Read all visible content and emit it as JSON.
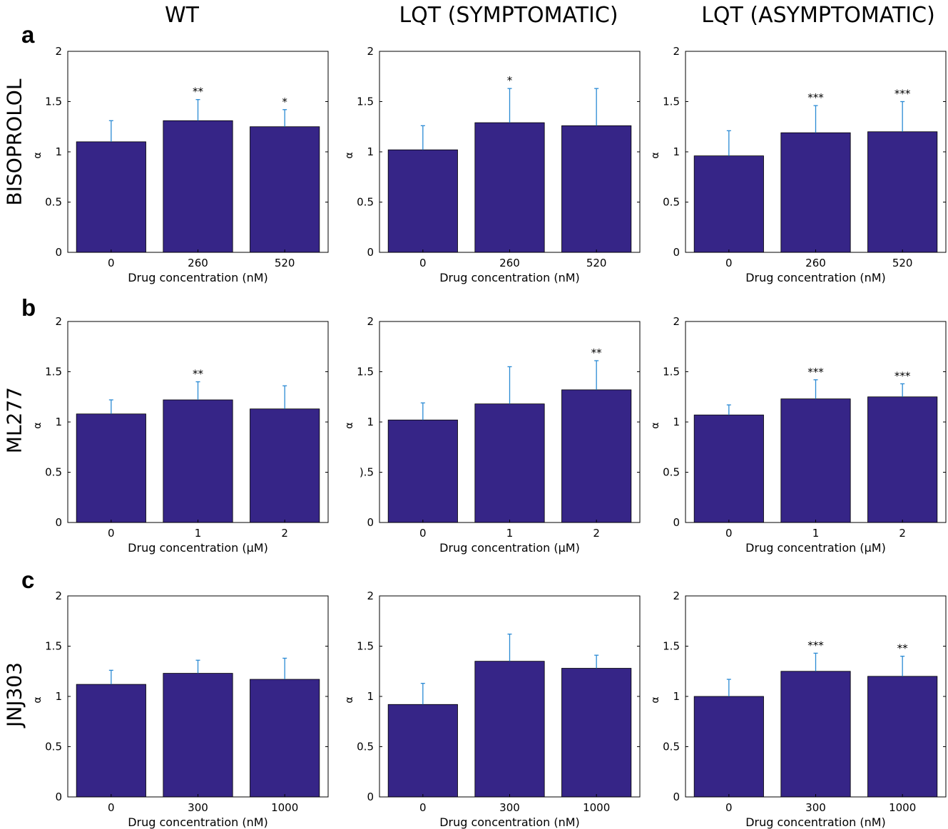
{
  "column_titles": [
    "WT",
    "LQT (SYMPTOMATIC)",
    "LQT (ASYMPTOMATIC)"
  ],
  "row_labels": [
    "a",
    "b",
    "c"
  ],
  "drug_names": [
    "BISOPROLOL",
    "ML277",
    "JNJ303"
  ],
  "colors": {
    "bar": "#362587",
    "error": "#2a8ad4"
  },
  "chart_data": [
    {
      "type": "bar",
      "row": 0,
      "col": 0,
      "categories": [
        "0",
        "260",
        "520"
      ],
      "values": [
        1.1,
        1.31,
        1.25
      ],
      "errors": [
        0.21,
        0.21,
        0.17
      ],
      "sig": [
        "",
        "**",
        "*"
      ],
      "xlabel": "Drug concentration (nM)",
      "ylabel": "α",
      "ylim": [
        0,
        2
      ],
      "yticks": [
        "0",
        "0.5",
        "1",
        "1.5",
        "2"
      ]
    },
    {
      "type": "bar",
      "row": 0,
      "col": 1,
      "categories": [
        "0",
        "260",
        "520"
      ],
      "values": [
        1.02,
        1.29,
        1.26
      ],
      "errors": [
        0.24,
        0.34,
        0.37
      ],
      "sig": [
        "",
        "*",
        ""
      ],
      "xlabel": "Drug concentration (nM)",
      "ylabel": "α",
      "ylim": [
        0,
        2
      ],
      "yticks": [
        "0",
        "0.5",
        "1",
        "1.5",
        "2"
      ]
    },
    {
      "type": "bar",
      "row": 0,
      "col": 2,
      "categories": [
        "0",
        "260",
        "520"
      ],
      "values": [
        0.96,
        1.19,
        1.2
      ],
      "errors": [
        0.25,
        0.27,
        0.3
      ],
      "sig": [
        "",
        "***",
        "***"
      ],
      "xlabel": "Drug concentration (nM)",
      "ylabel": "α",
      "ylim": [
        0,
        2
      ],
      "yticks": [
        "0",
        "0.5",
        "1",
        "1.5",
        "2"
      ]
    },
    {
      "type": "bar",
      "row": 1,
      "col": 0,
      "categories": [
        "0",
        "1",
        "2"
      ],
      "values": [
        1.08,
        1.22,
        1.13
      ],
      "errors": [
        0.14,
        0.18,
        0.23
      ],
      "sig": [
        "",
        "**",
        ""
      ],
      "xlabel": "Drug concentration (μM)",
      "ylabel": "α",
      "ylim": [
        0,
        2
      ],
      "yticks": [
        "0",
        "0.5",
        "1",
        "1.5",
        "2"
      ]
    },
    {
      "type": "bar",
      "row": 1,
      "col": 1,
      "categories": [
        "0",
        "1",
        "2"
      ],
      "values": [
        1.02,
        1.18,
        1.32
      ],
      "errors": [
        0.17,
        0.37,
        0.29
      ],
      "sig": [
        "",
        "",
        "**"
      ],
      "xlabel": "Drug concentration (μM)",
      "ylabel": "α",
      "ylim": [
        0,
        2
      ],
      "yticks": [
        "0",
        ").5",
        "1",
        "1.5",
        "2"
      ]
    },
    {
      "type": "bar",
      "row": 1,
      "col": 2,
      "categories": [
        "0",
        "1",
        "2"
      ],
      "values": [
        1.07,
        1.23,
        1.25
      ],
      "errors": [
        0.1,
        0.19,
        0.13
      ],
      "sig": [
        "",
        "***",
        "***"
      ],
      "xlabel": "Drug concentration (μM)",
      "ylabel": "α",
      "ylim": [
        0,
        2
      ],
      "yticks": [
        "0",
        "0.5",
        "1",
        "1.5",
        "2"
      ]
    },
    {
      "type": "bar",
      "row": 2,
      "col": 0,
      "categories": [
        "0",
        "300",
        "1000"
      ],
      "values": [
        1.12,
        1.23,
        1.17
      ],
      "errors": [
        0.14,
        0.13,
        0.21
      ],
      "sig": [
        "",
        "",
        ""
      ],
      "xlabel": "Drug concentration (nM)",
      "ylabel": "α",
      "ylim": [
        0,
        2
      ],
      "yticks": [
        "0",
        "0.5",
        "1",
        "1.5",
        "2"
      ]
    },
    {
      "type": "bar",
      "row": 2,
      "col": 1,
      "categories": [
        "0",
        "300",
        "1000"
      ],
      "values": [
        0.92,
        1.35,
        1.28
      ],
      "errors": [
        0.21,
        0.27,
        0.13
      ],
      "sig": [
        "",
        "",
        ""
      ],
      "xlabel": "Drug concentration (nM)",
      "ylabel": "α",
      "ylim": [
        0,
        2
      ],
      "yticks": [
        "0",
        "0.5",
        "1",
        "1.5",
        "2"
      ]
    },
    {
      "type": "bar",
      "row": 2,
      "col": 2,
      "categories": [
        "0",
        "300",
        "1000"
      ],
      "values": [
        1.0,
        1.25,
        1.2
      ],
      "errors": [
        0.17,
        0.18,
        0.2
      ],
      "sig": [
        "",
        "***",
        "**"
      ],
      "xlabel": "Drug concentration (nM)",
      "ylabel": "α",
      "ylim": [
        0,
        2
      ],
      "yticks": [
        "0",
        "0.5",
        "1",
        "1.5",
        "2"
      ]
    }
  ]
}
